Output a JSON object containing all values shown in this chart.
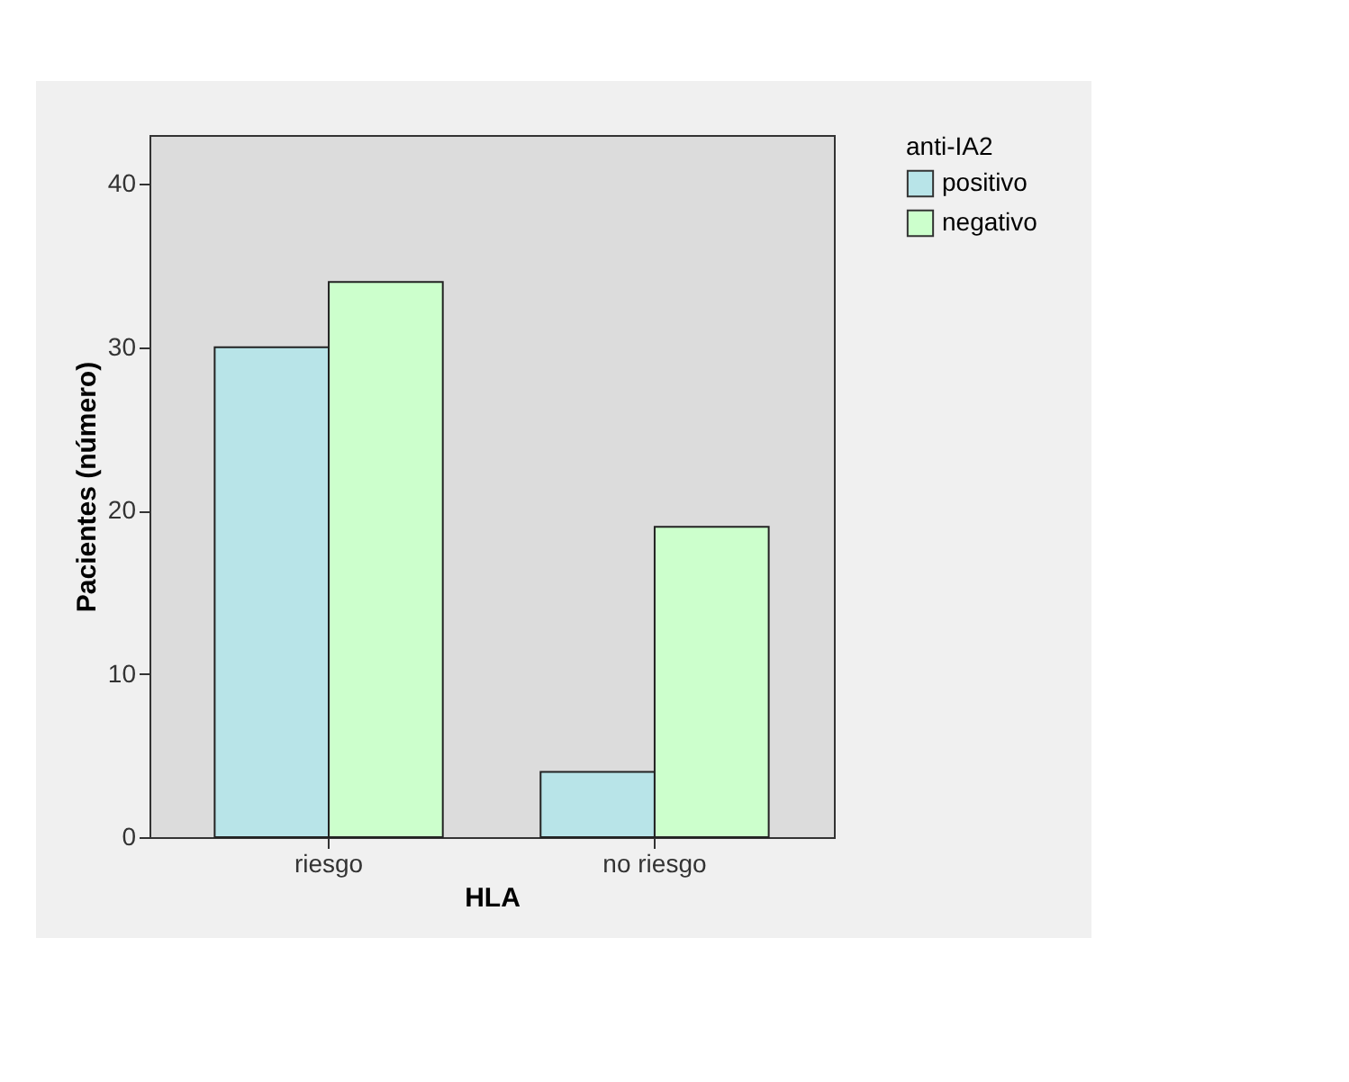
{
  "chart_data": {
    "type": "bar",
    "xlabel": "HLA",
    "ylabel": "Pacientes (número)",
    "legend_title": "anti-IA2",
    "categories": [
      "riesgo",
      "no riesgo"
    ],
    "series": [
      {
        "name": "positivo",
        "color": "#b8e4e8",
        "values": [
          30,
          4
        ]
      },
      {
        "name": "negativo",
        "color": "#ccffcc",
        "values": [
          34,
          19
        ]
      }
    ],
    "ylim": [
      0,
      43
    ],
    "yticks": [
      0,
      10,
      20,
      30,
      40
    ],
    "grid": false,
    "legend": "top right"
  }
}
